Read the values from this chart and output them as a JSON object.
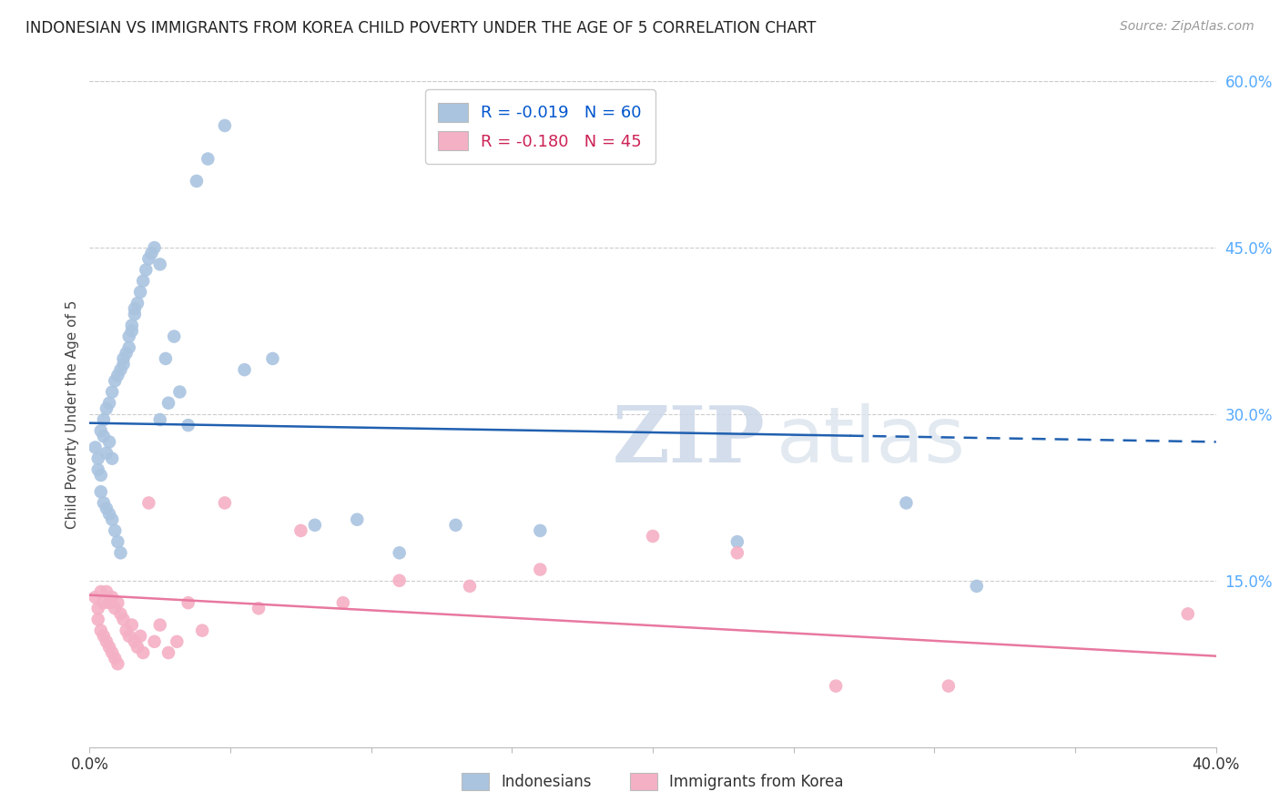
{
  "title": "INDONESIAN VS IMMIGRANTS FROM KOREA CHILD POVERTY UNDER THE AGE OF 5 CORRELATION CHART",
  "source": "Source: ZipAtlas.com",
  "ylabel": "Child Poverty Under the Age of 5",
  "xmin": 0.0,
  "xmax": 0.4,
  "ymin": 0.0,
  "ymax": 0.6,
  "xticks": [
    0.0,
    0.05,
    0.1,
    0.15,
    0.2,
    0.25,
    0.3,
    0.35,
    0.4
  ],
  "xtick_labels": [
    "0.0%",
    "",
    "",
    "",
    "",
    "",
    "",
    "",
    "40.0%"
  ],
  "yticks_right": [
    0.0,
    0.15,
    0.3,
    0.45,
    0.6
  ],
  "ytick_labels_right": [
    "",
    "15.0%",
    "30.0%",
    "45.0%",
    "60.0%"
  ],
  "legend_R_blue": "-0.019",
  "legend_N_blue": "60",
  "legend_R_pink": "-0.180",
  "legend_N_pink": "45",
  "legend_label_blue": "Indonesians",
  "legend_label_pink": "Immigrants from Korea",
  "blue_color": "#aac4e0",
  "pink_color": "#f4b0c4",
  "line_blue": "#2060b0",
  "line_pink": "#e878a0",
  "watermark_zip": "ZIP",
  "watermark_atlas": "atlas",
  "indonesian_x": [
    0.002,
    0.003,
    0.003,
    0.004,
    0.004,
    0.004,
    0.005,
    0.005,
    0.005,
    0.006,
    0.006,
    0.006,
    0.007,
    0.007,
    0.007,
    0.008,
    0.008,
    0.008,
    0.009,
    0.009,
    0.01,
    0.01,
    0.011,
    0.011,
    0.012,
    0.012,
    0.013,
    0.014,
    0.014,
    0.015,
    0.015,
    0.016,
    0.016,
    0.017,
    0.018,
    0.019,
    0.02,
    0.021,
    0.022,
    0.023,
    0.025,
    0.025,
    0.027,
    0.028,
    0.03,
    0.032,
    0.035,
    0.038,
    0.042,
    0.048,
    0.055,
    0.065,
    0.08,
    0.095,
    0.11,
    0.13,
    0.16,
    0.23,
    0.29,
    0.315
  ],
  "indonesian_y": [
    0.27,
    0.26,
    0.25,
    0.285,
    0.245,
    0.23,
    0.295,
    0.28,
    0.22,
    0.305,
    0.265,
    0.215,
    0.31,
    0.275,
    0.21,
    0.32,
    0.26,
    0.205,
    0.33,
    0.195,
    0.335,
    0.185,
    0.34,
    0.175,
    0.345,
    0.35,
    0.355,
    0.36,
    0.37,
    0.38,
    0.375,
    0.39,
    0.395,
    0.4,
    0.41,
    0.42,
    0.43,
    0.44,
    0.445,
    0.45,
    0.435,
    0.295,
    0.35,
    0.31,
    0.37,
    0.32,
    0.29,
    0.51,
    0.53,
    0.56,
    0.34,
    0.35,
    0.2,
    0.205,
    0.175,
    0.2,
    0.195,
    0.185,
    0.22,
    0.145
  ],
  "korean_x": [
    0.002,
    0.003,
    0.003,
    0.004,
    0.004,
    0.005,
    0.005,
    0.006,
    0.006,
    0.007,
    0.007,
    0.008,
    0.008,
    0.009,
    0.009,
    0.01,
    0.01,
    0.011,
    0.012,
    0.013,
    0.014,
    0.015,
    0.016,
    0.017,
    0.018,
    0.019,
    0.021,
    0.023,
    0.025,
    0.028,
    0.031,
    0.035,
    0.04,
    0.048,
    0.06,
    0.075,
    0.09,
    0.11,
    0.135,
    0.16,
    0.2,
    0.23,
    0.265,
    0.305,
    0.39
  ],
  "korean_y": [
    0.135,
    0.125,
    0.115,
    0.14,
    0.105,
    0.13,
    0.1,
    0.14,
    0.095,
    0.13,
    0.09,
    0.135,
    0.085,
    0.125,
    0.08,
    0.13,
    0.075,
    0.12,
    0.115,
    0.105,
    0.1,
    0.11,
    0.095,
    0.09,
    0.1,
    0.085,
    0.22,
    0.095,
    0.11,
    0.085,
    0.095,
    0.13,
    0.105,
    0.22,
    0.125,
    0.195,
    0.13,
    0.15,
    0.145,
    0.16,
    0.19,
    0.175,
    0.055,
    0.055,
    0.12
  ],
  "dot_size": 110,
  "blue_line_solid_end": 0.27,
  "blue_line_y_start": 0.292,
  "blue_line_y_end": 0.275,
  "pink_line_y_start": 0.137,
  "pink_line_y_end": 0.082
}
